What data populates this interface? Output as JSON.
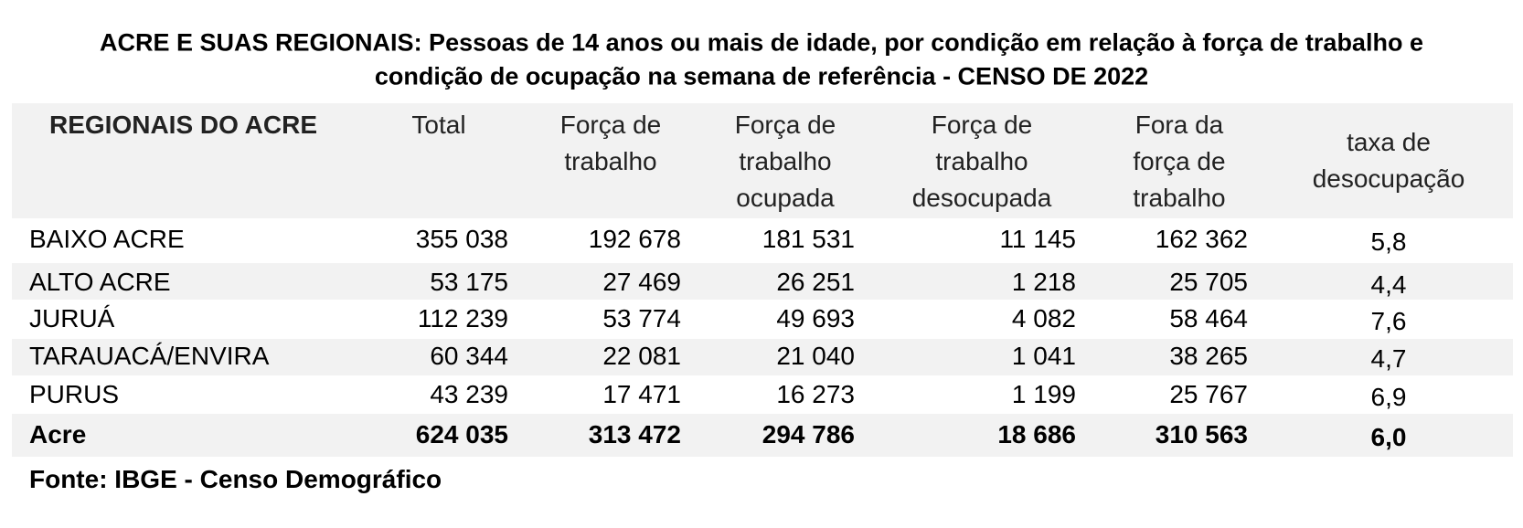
{
  "header": {
    "title_lines": [
      "ACRE E SUAS REGIONAIS:  Pessoas de 14 anos ou mais de idade, por condição em relação à força de trabalho e",
      "condição de ocupação na semana de referência - CENSO DE 2022"
    ]
  },
  "table": {
    "columns": [
      [
        "REGIONAIS DO ACRE"
      ],
      [
        "Total"
      ],
      [
        "Força de",
        "trabalho"
      ],
      [
        "Força de",
        "trabalho",
        "ocupada"
      ],
      [
        "Força de",
        "trabalho",
        "desocupada"
      ],
      [
        "Fora da",
        "força de",
        "trabalho"
      ],
      [
        "taxa de",
        "desocupação"
      ]
    ],
    "rows": [
      [
        "BAIXO ACRE",
        "355 038",
        "192 678",
        "181 531",
        "11 145",
        "162 362",
        "5,8"
      ],
      [
        "ALTO ACRE",
        "53 175",
        "27 469",
        "26 251",
        "1 218",
        "25 705",
        "4,4"
      ],
      [
        "JURUÁ",
        "112 239",
        "53 774",
        "49 693",
        "4 082",
        "58 464",
        "7,6"
      ],
      [
        "TARAUACÁ/ENVIRA",
        "60 344",
        "22 081",
        "21 040",
        "1 041",
        "38 265",
        "4,7"
      ],
      [
        "PURUS",
        "43 239",
        "17 471",
        "16 273",
        "1 199",
        "25 767",
        "6,9"
      ],
      [
        "Acre",
        "624 035",
        "313 472",
        "294 786",
        "18 686",
        "310 563",
        "6,0"
      ]
    ]
  },
  "footer": {
    "source": "Fonte: IBGE - Censo Demográfico"
  }
}
